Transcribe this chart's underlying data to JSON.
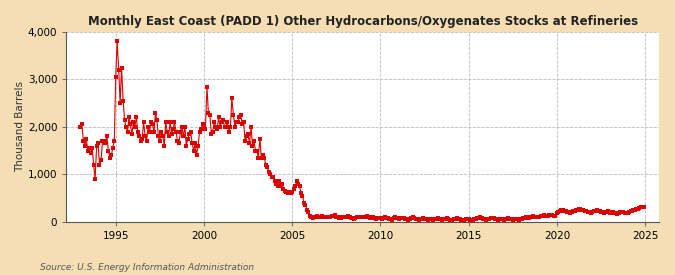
{
  "title": "Monthly East Coast (PADD 1) Other Hydrocarbons/Oxygenates Stocks at Refineries",
  "ylabel": "Thousand Barrels",
  "source": "Source: U.S. Energy Information Administration",
  "background_color": "#f5deb3",
  "plot_bg_color": "#ffffff",
  "dot_color": "#dd0000",
  "ylim": [
    0,
    4000
  ],
  "yticks": [
    0,
    1000,
    2000,
    3000,
    4000
  ],
  "ytick_labels": [
    "0",
    "1,000",
    "2,000",
    "3,000",
    "4,000"
  ],
  "xticks": [
    1995,
    2000,
    2005,
    2010,
    2015,
    2020,
    2025
  ],
  "xlim": [
    1992.2,
    2025.8
  ],
  "data": [
    [
      1993.0,
      2000
    ],
    [
      1993.08,
      2050
    ],
    [
      1993.17,
      1700
    ],
    [
      1993.25,
      1600
    ],
    [
      1993.33,
      1750
    ],
    [
      1993.42,
      1500
    ],
    [
      1993.5,
      1550
    ],
    [
      1993.58,
      1450
    ],
    [
      1993.67,
      1550
    ],
    [
      1993.75,
      1200
    ],
    [
      1993.83,
      900
    ],
    [
      1993.92,
      1600
    ],
    [
      1994.0,
      1650
    ],
    [
      1994.08,
      1200
    ],
    [
      1994.17,
      1300
    ],
    [
      1994.25,
      1700
    ],
    [
      1994.33,
      1700
    ],
    [
      1994.42,
      1650
    ],
    [
      1994.5,
      1800
    ],
    [
      1994.58,
      1500
    ],
    [
      1994.67,
      1350
    ],
    [
      1994.75,
      1400
    ],
    [
      1994.83,
      1550
    ],
    [
      1994.92,
      1700
    ],
    [
      1995.0,
      3050
    ],
    [
      1995.08,
      3800
    ],
    [
      1995.17,
      3200
    ],
    [
      1995.25,
      2500
    ],
    [
      1995.33,
      3250
    ],
    [
      1995.42,
      2550
    ],
    [
      1995.5,
      2150
    ],
    [
      1995.58,
      2000
    ],
    [
      1995.67,
      1900
    ],
    [
      1995.75,
      2200
    ],
    [
      1995.83,
      2050
    ],
    [
      1995.92,
      1850
    ],
    [
      1996.0,
      2100
    ],
    [
      1996.08,
      2000
    ],
    [
      1996.17,
      2200
    ],
    [
      1996.25,
      1900
    ],
    [
      1996.33,
      1800
    ],
    [
      1996.42,
      1700
    ],
    [
      1996.5,
      1750
    ],
    [
      1996.58,
      2100
    ],
    [
      1996.67,
      1800
    ],
    [
      1996.75,
      1700
    ],
    [
      1996.83,
      2000
    ],
    [
      1996.92,
      1900
    ],
    [
      1997.0,
      2100
    ],
    [
      1997.08,
      2050
    ],
    [
      1997.17,
      1900
    ],
    [
      1997.25,
      2300
    ],
    [
      1997.33,
      2150
    ],
    [
      1997.42,
      1800
    ],
    [
      1997.5,
      1700
    ],
    [
      1997.58,
      1900
    ],
    [
      1997.67,
      1800
    ],
    [
      1997.75,
      1600
    ],
    [
      1997.83,
      2100
    ],
    [
      1997.92,
      1900
    ],
    [
      1998.0,
      1800
    ],
    [
      1998.08,
      2100
    ],
    [
      1998.17,
      1850
    ],
    [
      1998.25,
      1950
    ],
    [
      1998.33,
      2100
    ],
    [
      1998.42,
      1900
    ],
    [
      1998.5,
      1700
    ],
    [
      1998.58,
      1650
    ],
    [
      1998.67,
      1900
    ],
    [
      1998.75,
      2000
    ],
    [
      1998.83,
      1800
    ],
    [
      1998.92,
      2000
    ],
    [
      1999.0,
      1600
    ],
    [
      1999.08,
      1750
    ],
    [
      1999.17,
      1850
    ],
    [
      1999.25,
      1900
    ],
    [
      1999.33,
      1650
    ],
    [
      1999.42,
      1500
    ],
    [
      1999.5,
      1650
    ],
    [
      1999.58,
      1400
    ],
    [
      1999.67,
      1600
    ],
    [
      1999.75,
      1900
    ],
    [
      1999.83,
      1950
    ],
    [
      1999.92,
      2050
    ],
    [
      2000.0,
      2000
    ],
    [
      2000.08,
      1950
    ],
    [
      2000.17,
      2850
    ],
    [
      2000.25,
      2300
    ],
    [
      2000.33,
      2250
    ],
    [
      2000.42,
      1850
    ],
    [
      2000.5,
      1900
    ],
    [
      2000.58,
      2100
    ],
    [
      2000.67,
      2000
    ],
    [
      2000.75,
      1950
    ],
    [
      2000.83,
      2200
    ],
    [
      2000.92,
      2000
    ],
    [
      2001.0,
      2100
    ],
    [
      2001.08,
      2150
    ],
    [
      2001.17,
      2000
    ],
    [
      2001.25,
      2000
    ],
    [
      2001.33,
      2100
    ],
    [
      2001.42,
      1900
    ],
    [
      2001.5,
      2000
    ],
    [
      2001.58,
      2600
    ],
    [
      2001.67,
      2250
    ],
    [
      2001.75,
      2000
    ],
    [
      2001.83,
      2100
    ],
    [
      2001.92,
      2100
    ],
    [
      2002.0,
      2200
    ],
    [
      2002.08,
      2250
    ],
    [
      2002.17,
      2050
    ],
    [
      2002.25,
      2100
    ],
    [
      2002.33,
      1700
    ],
    [
      2002.42,
      1800
    ],
    [
      2002.5,
      1850
    ],
    [
      2002.58,
      1650
    ],
    [
      2002.67,
      2000
    ],
    [
      2002.75,
      1600
    ],
    [
      2002.83,
      1700
    ],
    [
      2002.92,
      1500
    ],
    [
      2003.0,
      1500
    ],
    [
      2003.08,
      1350
    ],
    [
      2003.17,
      1750
    ],
    [
      2003.25,
      1350
    ],
    [
      2003.33,
      1400
    ],
    [
      2003.42,
      1350
    ],
    [
      2003.5,
      1200
    ],
    [
      2003.58,
      1150
    ],
    [
      2003.67,
      1050
    ],
    [
      2003.75,
      1000
    ],
    [
      2003.83,
      950
    ],
    [
      2003.92,
      950
    ],
    [
      2004.0,
      850
    ],
    [
      2004.08,
      800
    ],
    [
      2004.17,
      750
    ],
    [
      2004.25,
      850
    ],
    [
      2004.33,
      750
    ],
    [
      2004.42,
      800
    ],
    [
      2004.5,
      700
    ],
    [
      2004.58,
      650
    ],
    [
      2004.67,
      620
    ],
    [
      2004.75,
      600
    ],
    [
      2004.83,
      620
    ],
    [
      2004.92,
      610
    ],
    [
      2005.0,
      620
    ],
    [
      2005.08,
      700
    ],
    [
      2005.17,
      750
    ],
    [
      2005.25,
      850
    ],
    [
      2005.33,
      800
    ],
    [
      2005.42,
      750
    ],
    [
      2005.5,
      600
    ],
    [
      2005.58,
      550
    ],
    [
      2005.67,
      400
    ],
    [
      2005.75,
      350
    ],
    [
      2005.83,
      250
    ],
    [
      2005.92,
      200
    ],
    [
      2006.0,
      120
    ],
    [
      2006.08,
      100
    ],
    [
      2006.17,
      80
    ],
    [
      2006.25,
      90
    ],
    [
      2006.33,
      100
    ],
    [
      2006.42,
      120
    ],
    [
      2006.5,
      100
    ],
    [
      2006.58,
      110
    ],
    [
      2006.67,
      120
    ],
    [
      2006.75,
      90
    ],
    [
      2006.83,
      110
    ],
    [
      2006.92,
      100
    ],
    [
      2007.0,
      90
    ],
    [
      2007.08,
      100
    ],
    [
      2007.17,
      110
    ],
    [
      2007.25,
      120
    ],
    [
      2007.33,
      130
    ],
    [
      2007.42,
      140
    ],
    [
      2007.5,
      110
    ],
    [
      2007.58,
      90
    ],
    [
      2007.67,
      80
    ],
    [
      2007.75,
      70
    ],
    [
      2007.83,
      90
    ],
    [
      2007.92,
      100
    ],
    [
      2008.0,
      90
    ],
    [
      2008.08,
      110
    ],
    [
      2008.17,
      120
    ],
    [
      2008.25,
      90
    ],
    [
      2008.33,
      80
    ],
    [
      2008.42,
      70
    ],
    [
      2008.5,
      60
    ],
    [
      2008.58,
      70
    ],
    [
      2008.67,
      90
    ],
    [
      2008.75,
      110
    ],
    [
      2008.83,
      100
    ],
    [
      2008.92,
      90
    ],
    [
      2009.0,
      90
    ],
    [
      2009.08,
      100
    ],
    [
      2009.17,
      110
    ],
    [
      2009.25,
      120
    ],
    [
      2009.33,
      90
    ],
    [
      2009.42,
      70
    ],
    [
      2009.5,
      80
    ],
    [
      2009.58,
      90
    ],
    [
      2009.67,
      70
    ],
    [
      2009.75,
      60
    ],
    [
      2009.83,
      70
    ],
    [
      2009.92,
      80
    ],
    [
      2010.0,
      70
    ],
    [
      2010.08,
      60
    ],
    [
      2010.17,
      70
    ],
    [
      2010.25,
      90
    ],
    [
      2010.33,
      80
    ],
    [
      2010.42,
      70
    ],
    [
      2010.5,
      60
    ],
    [
      2010.58,
      50
    ],
    [
      2010.67,
      40
    ],
    [
      2010.75,
      70
    ],
    [
      2010.83,
      90
    ],
    [
      2010.92,
      80
    ],
    [
      2011.0,
      70
    ],
    [
      2011.08,
      60
    ],
    [
      2011.17,
      70
    ],
    [
      2011.25,
      80
    ],
    [
      2011.33,
      70
    ],
    [
      2011.42,
      60
    ],
    [
      2011.5,
      50
    ],
    [
      2011.58,
      40
    ],
    [
      2011.67,
      50
    ],
    [
      2011.75,
      70
    ],
    [
      2011.83,
      90
    ],
    [
      2011.92,
      80
    ],
    [
      2012.0,
      60
    ],
    [
      2012.08,
      50
    ],
    [
      2012.17,
      40
    ],
    [
      2012.25,
      50
    ],
    [
      2012.33,
      60
    ],
    [
      2012.42,
      70
    ],
    [
      2012.5,
      60
    ],
    [
      2012.58,
      50
    ],
    [
      2012.67,
      40
    ],
    [
      2012.75,
      50
    ],
    [
      2012.83,
      60
    ],
    [
      2012.92,
      50
    ],
    [
      2013.0,
      40
    ],
    [
      2013.08,
      50
    ],
    [
      2013.17,
      60
    ],
    [
      2013.25,
      70
    ],
    [
      2013.33,
      60
    ],
    [
      2013.42,
      50
    ],
    [
      2013.5,
      40
    ],
    [
      2013.58,
      50
    ],
    [
      2013.67,
      60
    ],
    [
      2013.75,
      70
    ],
    [
      2013.83,
      50
    ],
    [
      2013.92,
      40
    ],
    [
      2014.0,
      30
    ],
    [
      2014.08,
      40
    ],
    [
      2014.17,
      50
    ],
    [
      2014.25,
      60
    ],
    [
      2014.33,
      70
    ],
    [
      2014.42,
      60
    ],
    [
      2014.5,
      50
    ],
    [
      2014.58,
      40
    ],
    [
      2014.67,
      30
    ],
    [
      2014.75,
      40
    ],
    [
      2014.83,
      50
    ],
    [
      2014.92,
      60
    ],
    [
      2015.0,
      50
    ],
    [
      2015.08,
      40
    ],
    [
      2015.17,
      30
    ],
    [
      2015.25,
      40
    ],
    [
      2015.33,
      50
    ],
    [
      2015.42,
      60
    ],
    [
      2015.5,
      70
    ],
    [
      2015.58,
      80
    ],
    [
      2015.67,
      90
    ],
    [
      2015.75,
      70
    ],
    [
      2015.83,
      60
    ],
    [
      2015.92,
      50
    ],
    [
      2016.0,
      40
    ],
    [
      2016.08,
      50
    ],
    [
      2016.17,
      60
    ],
    [
      2016.25,
      70
    ],
    [
      2016.33,
      80
    ],
    [
      2016.42,
      70
    ],
    [
      2016.5,
      60
    ],
    [
      2016.58,
      50
    ],
    [
      2016.67,
      40
    ],
    [
      2016.75,
      50
    ],
    [
      2016.83,
      60
    ],
    [
      2016.92,
      50
    ],
    [
      2017.0,
      40
    ],
    [
      2017.08,
      50
    ],
    [
      2017.17,
      60
    ],
    [
      2017.25,
      70
    ],
    [
      2017.33,
      60
    ],
    [
      2017.42,
      50
    ],
    [
      2017.5,
      40
    ],
    [
      2017.58,
      50
    ],
    [
      2017.67,
      60
    ],
    [
      2017.75,
      50
    ],
    [
      2017.83,
      40
    ],
    [
      2017.92,
      50
    ],
    [
      2018.0,
      60
    ],
    [
      2018.08,
      70
    ],
    [
      2018.17,
      80
    ],
    [
      2018.25,
      90
    ],
    [
      2018.33,
      80
    ],
    [
      2018.42,
      70
    ],
    [
      2018.5,
      90
    ],
    [
      2018.58,
      110
    ],
    [
      2018.67,
      120
    ],
    [
      2018.75,
      110
    ],
    [
      2018.83,
      100
    ],
    [
      2018.92,
      90
    ],
    [
      2019.0,
      110
    ],
    [
      2019.08,
      120
    ],
    [
      2019.17,
      130
    ],
    [
      2019.25,
      140
    ],
    [
      2019.33,
      130
    ],
    [
      2019.42,
      120
    ],
    [
      2019.5,
      130
    ],
    [
      2019.58,
      140
    ],
    [
      2019.67,
      150
    ],
    [
      2019.75,
      140
    ],
    [
      2019.83,
      130
    ],
    [
      2019.92,
      120
    ],
    [
      2020.0,
      190
    ],
    [
      2020.08,
      210
    ],
    [
      2020.17,
      230
    ],
    [
      2020.25,
      250
    ],
    [
      2020.33,
      240
    ],
    [
      2020.42,
      230
    ],
    [
      2020.5,
      220
    ],
    [
      2020.58,
      210
    ],
    [
      2020.67,
      200
    ],
    [
      2020.75,
      190
    ],
    [
      2020.83,
      210
    ],
    [
      2020.92,
      220
    ],
    [
      2021.0,
      230
    ],
    [
      2021.08,
      240
    ],
    [
      2021.17,
      250
    ],
    [
      2021.25,
      270
    ],
    [
      2021.33,
      260
    ],
    [
      2021.42,
      250
    ],
    [
      2021.5,
      240
    ],
    [
      2021.58,
      230
    ],
    [
      2021.67,
      220
    ],
    [
      2021.75,
      210
    ],
    [
      2021.83,
      200
    ],
    [
      2021.92,
      190
    ],
    [
      2022.0,
      210
    ],
    [
      2022.08,
      220
    ],
    [
      2022.17,
      230
    ],
    [
      2022.25,
      240
    ],
    [
      2022.33,
      230
    ],
    [
      2022.42,
      220
    ],
    [
      2022.5,
      210
    ],
    [
      2022.58,
      200
    ],
    [
      2022.67,
      190
    ],
    [
      2022.75,
      200
    ],
    [
      2022.83,
      210
    ],
    [
      2022.92,
      220
    ],
    [
      2023.0,
      190
    ],
    [
      2023.08,
      200
    ],
    [
      2023.17,
      210
    ],
    [
      2023.25,
      190
    ],
    [
      2023.33,
      180
    ],
    [
      2023.42,
      170
    ],
    [
      2023.5,
      190
    ],
    [
      2023.58,
      200
    ],
    [
      2023.67,
      210
    ],
    [
      2023.75,
      200
    ],
    [
      2023.83,
      190
    ],
    [
      2023.92,
      180
    ],
    [
      2024.0,
      190
    ],
    [
      2024.08,
      210
    ],
    [
      2024.17,
      220
    ],
    [
      2024.25,
      230
    ],
    [
      2024.33,
      240
    ],
    [
      2024.42,
      250
    ],
    [
      2024.5,
      260
    ],
    [
      2024.58,
      270
    ],
    [
      2024.67,
      290
    ],
    [
      2024.75,
      300
    ],
    [
      2024.83,
      310
    ],
    [
      2024.92,
      320
    ]
  ]
}
